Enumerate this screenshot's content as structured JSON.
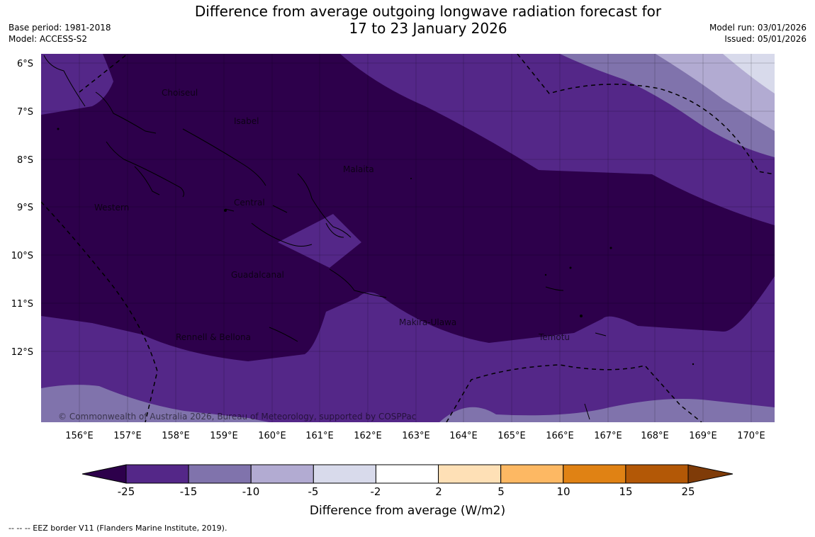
{
  "title_line1": "Difference from average outgoing longwave radiation forecast for",
  "title_line2": "17 to 23 January 2026",
  "base_period": "Base period: 1981-2018",
  "model": "Model: ACCESS-S2",
  "model_run": "Model run: 03/01/2026",
  "issued": "Issued: 05/01/2026",
  "map": {
    "lat_ticks": [
      "6°S",
      "7°S",
      "8°S",
      "9°S",
      "10°S",
      "11°S",
      "12°S"
    ],
    "lon_ticks": [
      "156°E",
      "157°E",
      "158°E",
      "159°E",
      "160°E",
      "161°E",
      "162°E",
      "163°E",
      "164°E",
      "165°E",
      "166°E",
      "167°E",
      "168°E",
      "169°E",
      "170°E"
    ],
    "region_labels": [
      "Choiseul",
      "Isabel",
      "Malaita",
      "Western",
      "Central",
      "Guadalcanal",
      "Makira-Ulawa",
      "Rennell & Bellona",
      "Temotu"
    ],
    "copyright": "© Commonwealth of Australia 2026, Bureau of Meteorology, supported by COSPPac"
  },
  "colorbar": {
    "ticks": [
      "-25",
      "-15",
      "-10",
      "-5",
      "-2",
      "2",
      "5",
      "10",
      "15",
      "25"
    ],
    "colors": [
      "#2d004b",
      "#542788",
      "#8073ac",
      "#b2abd2",
      "#d8daeb",
      "#ffffff",
      "#fee0b6",
      "#fdb863",
      "#e08214",
      "#b35806",
      "#7f3b08"
    ],
    "label": "Difference from average (W/m2)"
  },
  "footer_note": "--  --  -- EEZ border V11 (Flanders Marine Institute, 2019)."
}
